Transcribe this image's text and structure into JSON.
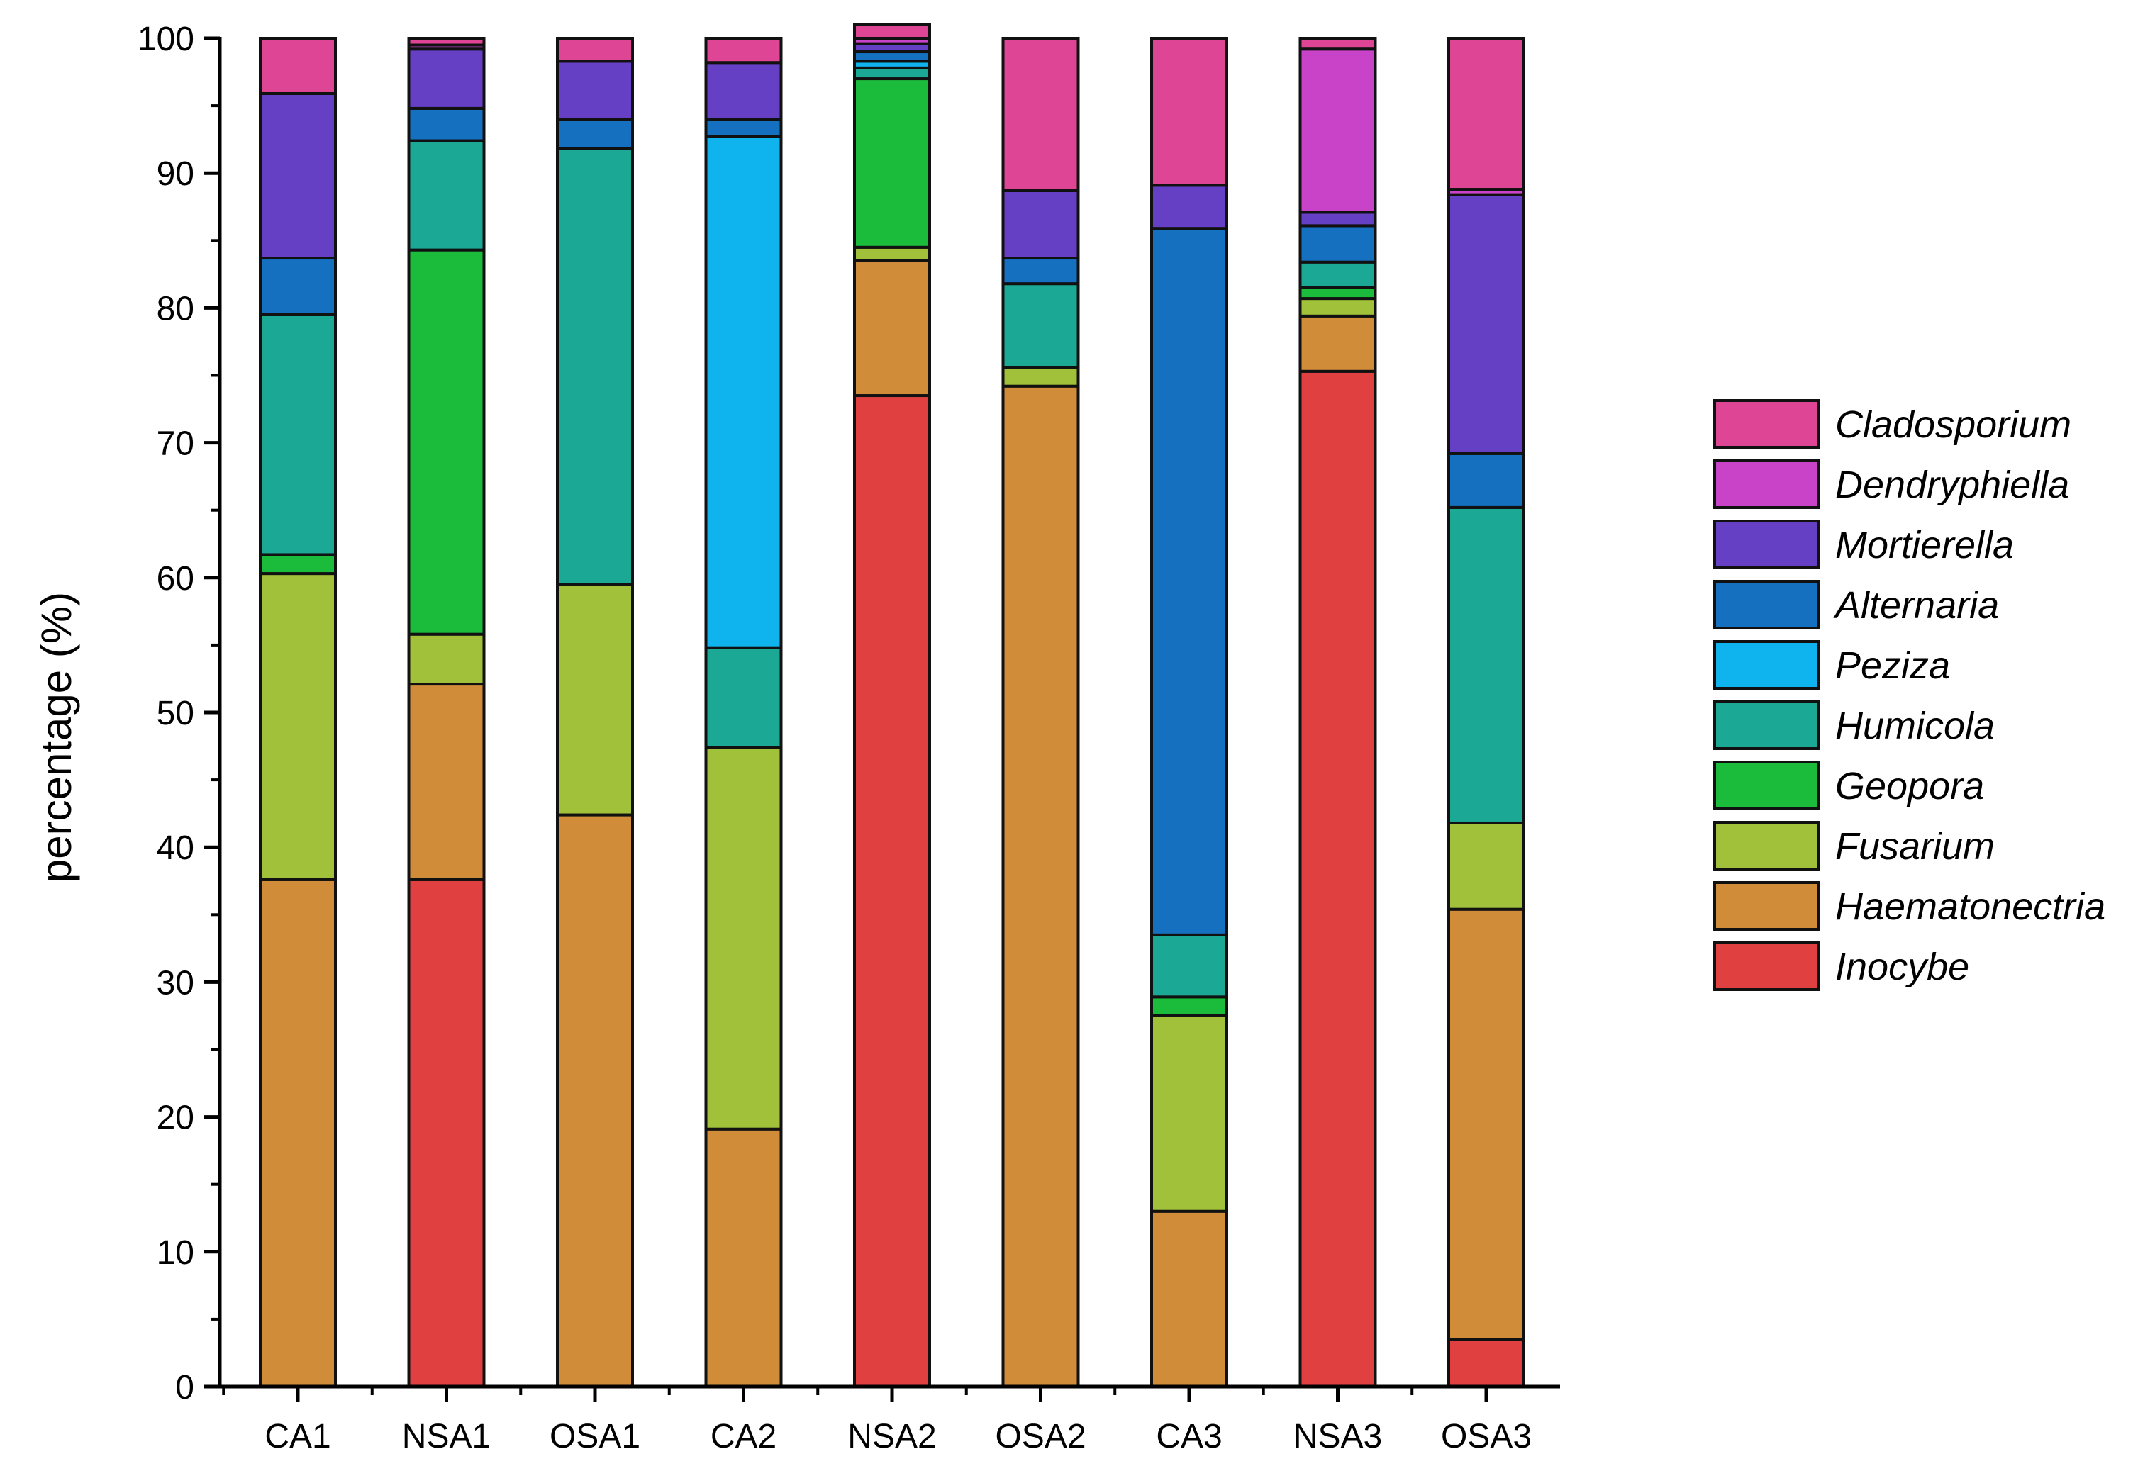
{
  "chart_data": {
    "type": "bar",
    "stacked": true,
    "title": "",
    "xlabel": "",
    "ylabel": "percentage (%)",
    "ylim": [
      0,
      100
    ],
    "yticks": [
      0,
      10,
      20,
      30,
      40,
      50,
      60,
      70,
      80,
      90,
      100
    ],
    "categories": [
      "CA1",
      "NSA1",
      "OSA1",
      "CA2",
      "NSA2",
      "OSA2",
      "CA3",
      "NSA3",
      "OSA3"
    ],
    "legend_position": "right",
    "series": [
      {
        "name": "Inocybe",
        "color": "#e04040",
        "values": [
          0,
          37.6,
          0,
          0,
          73.5,
          0,
          0,
          75.3,
          3.5
        ]
      },
      {
        "name": "Haematonectria",
        "color": "#d18c3a",
        "values": [
          37.6,
          14.5,
          42.4,
          19.1,
          10.0,
          74.2,
          13.0,
          4.1,
          31.9
        ]
      },
      {
        "name": "Fusarium",
        "color": "#a2c13a",
        "values": [
          22.7,
          3.7,
          17.1,
          28.3,
          1.0,
          1.4,
          14.5,
          1.3,
          6.4
        ]
      },
      {
        "name": "Geopora",
        "color": "#1bbc3c",
        "values": [
          1.4,
          28.5,
          0,
          0,
          12.5,
          0,
          1.4,
          0.8,
          0
        ]
      },
      {
        "name": "Humicola",
        "color": "#1ba996",
        "values": [
          17.8,
          8.1,
          32.3,
          7.4,
          0.8,
          6.2,
          4.6,
          1.9,
          23.4
        ]
      },
      {
        "name": "Peziza",
        "color": "#0fb4ee",
        "values": [
          0,
          0,
          0,
          37.9,
          0.5,
          0,
          0,
          0,
          0
        ]
      },
      {
        "name": "Alternaria",
        "color": "#1570c0",
        "values": [
          4.2,
          2.4,
          2.2,
          1.3,
          0.7,
          1.9,
          52.4,
          2.7,
          4.0
        ]
      },
      {
        "name": "Mortierella",
        "color": "#6640c4",
        "values": [
          12.2,
          4.4,
          4.3,
          4.2,
          0.6,
          5.0,
          3.2,
          1.0,
          19.2
        ]
      },
      {
        "name": "Dendryphiella",
        "color": "#c843c8",
        "values": [
          0,
          0.3,
          0,
          0,
          0.4,
          0,
          0,
          12.1,
          0.4
        ]
      },
      {
        "name": "Cladosporium",
        "color": "#de4594",
        "values": [
          4.1,
          0.5,
          1.7,
          1.8,
          1.0,
          11.3,
          10.9,
          0.8,
          11.2
        ]
      }
    ]
  }
}
